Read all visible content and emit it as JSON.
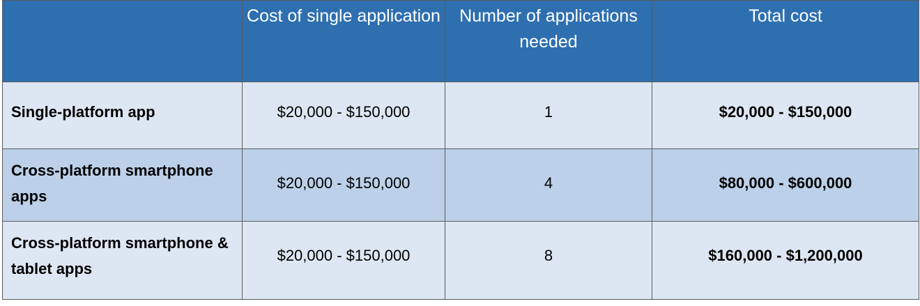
{
  "headers": [
    "",
    "Cost of single application",
    "Number of applications needed",
    "Total cost"
  ],
  "rows": [
    {
      "label": "Single-platform app",
      "cost": "$20,000 - $150,000",
      "count": "1",
      "total": "$20,000 - $150,000"
    },
    {
      "label": "Cross-platform smartphone apps",
      "cost": "$20,000 - $150,000",
      "count": "4",
      "total": "$80,000 - $600,000"
    },
    {
      "label": "Cross-platform smartphone & tablet apps",
      "cost": "$20,000 - $150,000",
      "count": "8",
      "total": "$160,000 - $1,200,000"
    }
  ],
  "colors": {
    "header_bg": "#2e6fb0",
    "row_light": "#dde7f3",
    "row_dark": "#bcd0e9"
  }
}
